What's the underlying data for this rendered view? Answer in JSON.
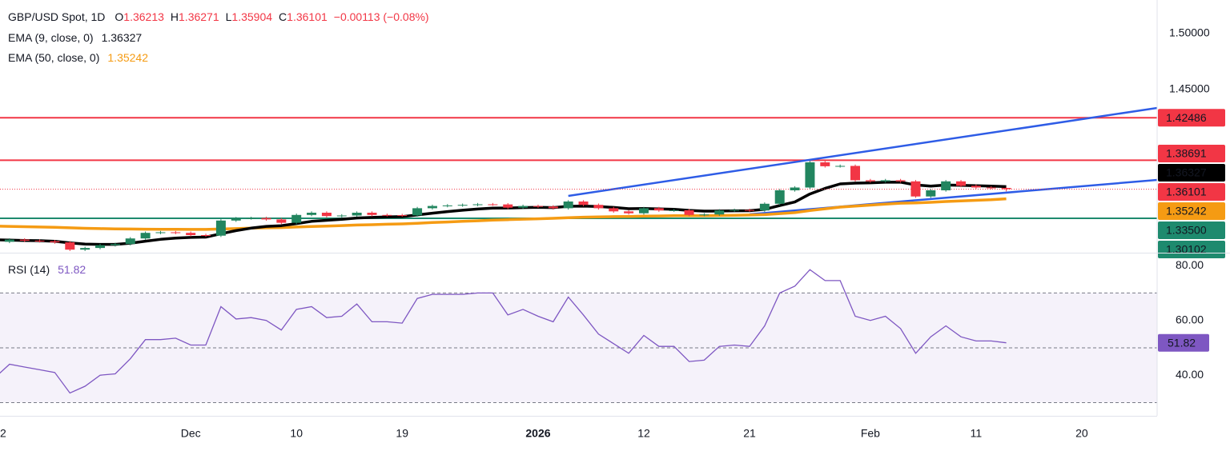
{
  "chart_data": [
    {
      "type": "candlestick",
      "title": "GBP/USD Spot, 1D",
      "ohlc_labels": [
        "O",
        "H",
        "L",
        "C"
      ],
      "change_label": "−0.00113 (−0.08%)",
      "categories": [
        "2",
        null,
        null,
        null,
        null,
        null,
        null,
        null,
        null,
        null,
        null,
        null,
        null,
        "Dec",
        null,
        null,
        null,
        null,
        null,
        null,
        "10",
        null,
        null,
        null,
        null,
        null,
        null,
        "19",
        null,
        null,
        null,
        null,
        null,
        null,
        null,
        null,
        "2026",
        null,
        null,
        null,
        null,
        null,
        null,
        "12",
        null,
        null,
        null,
        null,
        null,
        null,
        "21",
        null,
        null,
        null,
        null,
        null,
        null,
        null,
        "Feb",
        null,
        null,
        null,
        null,
        null,
        null,
        "11",
        null,
        null,
        null,
        null,
        null,
        null,
        "20",
        null,
        null,
        null,
        null,
        null
      ],
      "open": [
        null,
        1.314,
        1.316,
        1.315,
        1.3145,
        1.3135,
        1.307,
        1.3085,
        1.311,
        1.312,
        1.317,
        1.322,
        1.3225,
        1.322,
        1.32,
        1.3195,
        1.333,
        1.335,
        1.3352,
        1.334,
        1.331,
        1.338,
        1.34,
        1.337,
        1.3375,
        1.34,
        1.338,
        1.3378,
        1.3376,
        1.344,
        1.346,
        1.3465,
        1.347,
        1.3475,
        1.3474,
        1.3445,
        1.346,
        1.3455,
        1.344,
        1.35,
        1.347,
        1.344,
        1.3412,
        1.3395,
        1.344,
        1.342,
        1.3422,
        1.338,
        1.3384,
        1.342,
        1.3424,
        1.342,
        1.348,
        1.36,
        1.3625,
        1.385,
        1.3815,
        1.3818,
        1.369,
        1.368,
        1.369,
        1.368,
        1.3545,
        1.36,
        1.368,
        1.364,
        1.3625,
        1.36213,
        null,
        null,
        null,
        null,
        null,
        null,
        null,
        null,
        null,
        null
      ],
      "high": [
        null,
        1.3172,
        1.3172,
        1.3162,
        1.3157,
        1.3147,
        1.3097,
        1.3122,
        1.3132,
        1.3182,
        1.3232,
        1.3237,
        1.3237,
        1.3232,
        1.3212,
        1.3342,
        1.3362,
        1.3364,
        1.3364,
        1.3352,
        1.3392,
        1.3412,
        1.3412,
        1.3387,
        1.3412,
        1.3412,
        1.3392,
        1.339,
        1.3452,
        1.3472,
        1.3477,
        1.3482,
        1.3487,
        1.3487,
        1.3486,
        1.3472,
        1.3472,
        1.3467,
        1.3512,
        1.3512,
        1.3482,
        1.3452,
        1.3424,
        1.3452,
        1.3452,
        1.3434,
        1.3434,
        1.3396,
        1.3432,
        1.3436,
        1.3436,
        1.3492,
        1.3612,
        1.3637,
        1.3862,
        1.3862,
        1.383,
        1.383,
        1.3702,
        1.3702,
        1.3702,
        1.3692,
        1.3612,
        1.3692,
        1.3692,
        1.3652,
        1.3637,
        1.36271,
        null,
        null,
        null,
        null,
        null,
        null,
        null,
        null,
        null,
        null
      ],
      "low": [
        null,
        1.3128,
        1.3138,
        1.3133,
        1.3123,
        1.3058,
        1.3058,
        1.3073,
        1.3098,
        1.3108,
        1.3158,
        1.3208,
        1.3208,
        1.3188,
        1.3183,
        1.3183,
        1.3318,
        1.3338,
        1.3328,
        1.3298,
        1.3298,
        1.3368,
        1.3358,
        1.3358,
        1.3363,
        1.3368,
        1.3366,
        1.3364,
        1.3364,
        1.3428,
        1.3448,
        1.3453,
        1.3458,
        1.3462,
        1.3433,
        1.3433,
        1.3443,
        1.3428,
        1.3428,
        1.3458,
        1.3428,
        1.34,
        1.3383,
        1.3383,
        1.3408,
        1.3408,
        1.3368,
        1.3368,
        1.3372,
        1.3408,
        1.3408,
        1.3408,
        1.3468,
        1.3588,
        1.3613,
        1.3803,
        1.3803,
        1.3678,
        1.3668,
        1.3668,
        1.3668,
        1.3533,
        1.3533,
        1.3588,
        1.3628,
        1.3613,
        1.3609,
        1.35904,
        null,
        null,
        null,
        null,
        null,
        null,
        null,
        null,
        null,
        null
      ],
      "close": [
        null,
        1.316,
        1.315,
        1.3145,
        1.3135,
        1.307,
        1.3085,
        1.311,
        1.312,
        1.317,
        1.322,
        1.3225,
        1.322,
        1.32,
        1.3195,
        1.333,
        1.335,
        1.3352,
        1.334,
        1.331,
        1.338,
        1.34,
        1.337,
        1.3375,
        1.34,
        1.338,
        1.3378,
        1.3376,
        1.344,
        1.346,
        1.3465,
        1.347,
        1.3475,
        1.3474,
        1.3445,
        1.346,
        1.3455,
        1.344,
        1.35,
        1.347,
        1.344,
        1.3412,
        1.3395,
        1.344,
        1.342,
        1.3422,
        1.338,
        1.3384,
        1.342,
        1.3424,
        1.342,
        1.348,
        1.36,
        1.3625,
        1.385,
        1.3815,
        1.3818,
        1.369,
        1.368,
        1.369,
        1.368,
        1.3545,
        1.36,
        1.368,
        1.364,
        1.3625,
        1.3621,
        1.36101,
        null,
        null,
        null,
        null,
        null,
        null,
        null,
        null,
        null,
        null
      ],
      "up_color": "#22855f",
      "down_color": "#f23645",
      "overlays": [
        {
          "name": "EMA (9, close, 0)",
          "color": "#000000",
          "values": [
            1.3158,
            1.3155,
            1.3152,
            1.315,
            1.3145,
            1.313,
            1.312,
            1.3117,
            1.3117,
            1.3128,
            1.3146,
            1.3162,
            1.3173,
            1.3179,
            1.3182,
            1.3212,
            1.324,
            1.3262,
            1.3278,
            1.3284,
            1.3303,
            1.3323,
            1.3332,
            1.3341,
            1.3353,
            1.3358,
            1.3362,
            1.3365,
            1.338,
            1.3396,
            1.341,
            1.3422,
            1.3433,
            1.3441,
            1.3442,
            1.3446,
            1.3448,
            1.3446,
            1.3457,
            1.3459,
            1.3455,
            1.3447,
            1.3436,
            1.3437,
            1.3434,
            1.3431,
            1.3421,
            1.3414,
            1.3415,
            1.3417,
            1.3418,
            1.343,
            1.3464,
            1.3496,
            1.3567,
            1.3617,
            1.3657,
            1.3664,
            1.3667,
            1.3672,
            1.3673,
            1.3648,
            1.3638,
            1.3647,
            1.3645,
            1.3641,
            1.3637,
            1.36327,
            null,
            null,
            null,
            null,
            null,
            null,
            null,
            null,
            null,
            null
          ]
        },
        {
          "name": "EMA (50, close, 0)",
          "color": "#f59b13",
          "values": [
            1.328,
            1.3278,
            1.3275,
            1.3272,
            1.3269,
            1.3265,
            1.3261,
            1.3258,
            1.3256,
            1.3254,
            1.3253,
            1.3252,
            1.3252,
            1.3251,
            1.3251,
            1.3254,
            1.3258,
            1.3262,
            1.3265,
            1.3267,
            1.3272,
            1.3277,
            1.3281,
            1.3285,
            1.329,
            1.3293,
            1.3297,
            1.33,
            1.3306,
            1.3312,
            1.3317,
            1.3323,
            1.3328,
            1.3334,
            1.3338,
            1.3342,
            1.3346,
            1.335,
            1.3356,
            1.336,
            1.3363,
            1.3365,
            1.3366,
            1.3369,
            1.3371,
            1.3373,
            1.3373,
            1.3373,
            1.3375,
            1.3377,
            1.3379,
            1.3383,
            1.3392,
            1.3401,
            1.3419,
            1.3435,
            1.345,
            1.3459,
            1.3468,
            1.3477,
            1.3485,
            1.3488,
            1.3493,
            1.35,
            1.3506,
            1.3511,
            1.3516,
            1.35242,
            null,
            null,
            null,
            null,
            null,
            null,
            null,
            null,
            null,
            null
          ]
        }
      ],
      "levels": [
        {
          "value": 1.42486,
          "color": "#f23645"
        },
        {
          "value": 1.38691,
          "color": "#f23645"
        },
        {
          "value": 1.335,
          "label": "1.33500",
          "color": "#1e8a6e"
        },
        {
          "value": 1.30102,
          "color": "#1e8a6e"
        }
      ],
      "trendlines": [
        {
          "x": [
            38,
            77
          ],
          "values": [
            1.355,
            1.4336
          ],
          "color": "#2e5ce6"
        },
        {
          "x": [
            50,
            77
          ],
          "values": [
            1.3386,
            1.3693
          ],
          "color": "#2e5ce6"
        }
      ],
      "ylim": [
        1.305,
        1.53
      ],
      "yticks": [
        {
          "value": 1.5,
          "label": "1.50000"
        },
        {
          "value": 1.45,
          "label": "1.45000"
        }
      ],
      "grid": false
    },
    {
      "type": "line",
      "series": [
        {
          "name": "RSI (14)",
          "color": "#7e57c2",
          "values": [
            39,
            44,
            43,
            42,
            41,
            33.5,
            36,
            40,
            40.5,
            46,
            53,
            53,
            53.5,
            51,
            51,
            65,
            60.5,
            61,
            60,
            56.5,
            64,
            65,
            61,
            61.5,
            66,
            59.5,
            59.5,
            59,
            68,
            69.5,
            69.5,
            69.5,
            70,
            70,
            62,
            64,
            61.5,
            59.5,
            68.5,
            62,
            55,
            51.5,
            48,
            54.5,
            50.5,
            50.5,
            45,
            45.5,
            50.5,
            51,
            50.5,
            58,
            70,
            72.5,
            78.5,
            74.5,
            74.5,
            61.5,
            60,
            61.5,
            57,
            48,
            54,
            58,
            54,
            52.5,
            52.5,
            51.82,
            null,
            null,
            null,
            null,
            null,
            null,
            null,
            null,
            null,
            null
          ]
        }
      ],
      "bands": [
        70,
        50,
        30
      ],
      "ylim": [
        25.2,
        84.1
      ],
      "yticks": [
        {
          "value": 80,
          "label": "80.00"
        },
        {
          "value": 60,
          "label": "60.00"
        },
        {
          "value": 40,
          "label": "40.00"
        }
      ],
      "grid": false
    }
  ]
}
